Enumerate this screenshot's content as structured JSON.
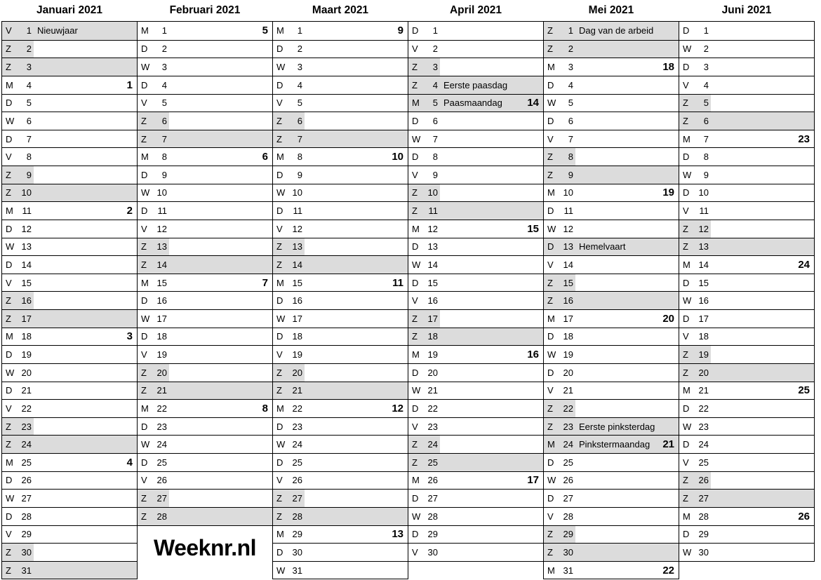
{
  "logo": {
    "text": "Weeknr.nl"
  },
  "calendar": {
    "year": "2021",
    "shade_color": "#dcdcdc",
    "weekday_letters": {
      "monday": "M",
      "tuesday": "D",
      "wednesday": "W",
      "thursday": "D",
      "friday": "V",
      "saturday": "Z",
      "sunday": "Z"
    },
    "months": [
      {
        "title": "Januari 2021",
        "days": [
          {
            "wd": "V",
            "n": 1,
            "holiday": "Nieuwjaar",
            "shade": "full"
          },
          {
            "wd": "Z",
            "n": 2,
            "shade": "sat"
          },
          {
            "wd": "Z",
            "n": 3,
            "shade": "full"
          },
          {
            "wd": "M",
            "n": 4,
            "week": "1"
          },
          {
            "wd": "D",
            "n": 5
          },
          {
            "wd": "W",
            "n": 6
          },
          {
            "wd": "D",
            "n": 7
          },
          {
            "wd": "V",
            "n": 8
          },
          {
            "wd": "Z",
            "n": 9,
            "shade": "sat"
          },
          {
            "wd": "Z",
            "n": 10,
            "shade": "full"
          },
          {
            "wd": "M",
            "n": 11,
            "week": "2"
          },
          {
            "wd": "D",
            "n": 12
          },
          {
            "wd": "W",
            "n": 13
          },
          {
            "wd": "D",
            "n": 14
          },
          {
            "wd": "V",
            "n": 15
          },
          {
            "wd": "Z",
            "n": 16,
            "shade": "sat"
          },
          {
            "wd": "Z",
            "n": 17,
            "shade": "full"
          },
          {
            "wd": "M",
            "n": 18,
            "week": "3"
          },
          {
            "wd": "D",
            "n": 19
          },
          {
            "wd": "W",
            "n": 20
          },
          {
            "wd": "D",
            "n": 21
          },
          {
            "wd": "V",
            "n": 22
          },
          {
            "wd": "Z",
            "n": 23,
            "shade": "sat"
          },
          {
            "wd": "Z",
            "n": 24,
            "shade": "full"
          },
          {
            "wd": "M",
            "n": 25,
            "week": "4"
          },
          {
            "wd": "D",
            "n": 26
          },
          {
            "wd": "W",
            "n": 27
          },
          {
            "wd": "D",
            "n": 28
          },
          {
            "wd": "V",
            "n": 29
          },
          {
            "wd": "Z",
            "n": 30,
            "shade": "sat"
          },
          {
            "wd": "Z",
            "n": 31,
            "shade": "full"
          }
        ]
      },
      {
        "title": "Februari 2021",
        "days": [
          {
            "wd": "M",
            "n": 1,
            "week": "5"
          },
          {
            "wd": "D",
            "n": 2
          },
          {
            "wd": "W",
            "n": 3
          },
          {
            "wd": "D",
            "n": 4
          },
          {
            "wd": "V",
            "n": 5
          },
          {
            "wd": "Z",
            "n": 6,
            "shade": "sat"
          },
          {
            "wd": "Z",
            "n": 7,
            "shade": "full"
          },
          {
            "wd": "M",
            "n": 8,
            "week": "6"
          },
          {
            "wd": "D",
            "n": 9
          },
          {
            "wd": "W",
            "n": 10
          },
          {
            "wd": "D",
            "n": 11
          },
          {
            "wd": "V",
            "n": 12
          },
          {
            "wd": "Z",
            "n": 13,
            "shade": "sat"
          },
          {
            "wd": "Z",
            "n": 14,
            "shade": "full"
          },
          {
            "wd": "M",
            "n": 15,
            "week": "7"
          },
          {
            "wd": "D",
            "n": 16
          },
          {
            "wd": "W",
            "n": 17
          },
          {
            "wd": "D",
            "n": 18
          },
          {
            "wd": "V",
            "n": 19
          },
          {
            "wd": "Z",
            "n": 20,
            "shade": "sat"
          },
          {
            "wd": "Z",
            "n": 21,
            "shade": "full"
          },
          {
            "wd": "M",
            "n": 22,
            "week": "8"
          },
          {
            "wd": "D",
            "n": 23
          },
          {
            "wd": "W",
            "n": 24
          },
          {
            "wd": "D",
            "n": 25
          },
          {
            "wd": "V",
            "n": 26
          },
          {
            "wd": "Z",
            "n": 27,
            "shade": "sat"
          },
          {
            "wd": "Z",
            "n": 28,
            "shade": "full"
          }
        ]
      },
      {
        "title": "Maart 2021",
        "days": [
          {
            "wd": "M",
            "n": 1,
            "week": "9"
          },
          {
            "wd": "D",
            "n": 2
          },
          {
            "wd": "W",
            "n": 3
          },
          {
            "wd": "D",
            "n": 4
          },
          {
            "wd": "V",
            "n": 5
          },
          {
            "wd": "Z",
            "n": 6,
            "shade": "sat"
          },
          {
            "wd": "Z",
            "n": 7,
            "shade": "full"
          },
          {
            "wd": "M",
            "n": 8,
            "week": "10"
          },
          {
            "wd": "D",
            "n": 9
          },
          {
            "wd": "W",
            "n": 10
          },
          {
            "wd": "D",
            "n": 11
          },
          {
            "wd": "V",
            "n": 12
          },
          {
            "wd": "Z",
            "n": 13,
            "shade": "sat"
          },
          {
            "wd": "Z",
            "n": 14,
            "shade": "full"
          },
          {
            "wd": "M",
            "n": 15,
            "week": "11"
          },
          {
            "wd": "D",
            "n": 16
          },
          {
            "wd": "W",
            "n": 17
          },
          {
            "wd": "D",
            "n": 18
          },
          {
            "wd": "V",
            "n": 19
          },
          {
            "wd": "Z",
            "n": 20,
            "shade": "sat"
          },
          {
            "wd": "Z",
            "n": 21,
            "shade": "full"
          },
          {
            "wd": "M",
            "n": 22,
            "week": "12"
          },
          {
            "wd": "D",
            "n": 23
          },
          {
            "wd": "W",
            "n": 24
          },
          {
            "wd": "D",
            "n": 25
          },
          {
            "wd": "V",
            "n": 26
          },
          {
            "wd": "Z",
            "n": 27,
            "shade": "sat"
          },
          {
            "wd": "Z",
            "n": 28,
            "shade": "full"
          },
          {
            "wd": "M",
            "n": 29,
            "week": "13"
          },
          {
            "wd": "D",
            "n": 30
          },
          {
            "wd": "W",
            "n": 31
          }
        ]
      },
      {
        "title": "April 2021",
        "days": [
          {
            "wd": "D",
            "n": 1
          },
          {
            "wd": "V",
            "n": 2
          },
          {
            "wd": "Z",
            "n": 3,
            "shade": "sat"
          },
          {
            "wd": "Z",
            "n": 4,
            "holiday": "Eerste paasdag",
            "shade": "full"
          },
          {
            "wd": "M",
            "n": 5,
            "holiday": "Paasmaandag",
            "shade": "full",
            "week": "14"
          },
          {
            "wd": "D",
            "n": 6
          },
          {
            "wd": "W",
            "n": 7
          },
          {
            "wd": "D",
            "n": 8
          },
          {
            "wd": "V",
            "n": 9
          },
          {
            "wd": "Z",
            "n": 10,
            "shade": "sat"
          },
          {
            "wd": "Z",
            "n": 11,
            "shade": "full"
          },
          {
            "wd": "M",
            "n": 12,
            "week": "15"
          },
          {
            "wd": "D",
            "n": 13
          },
          {
            "wd": "W",
            "n": 14
          },
          {
            "wd": "D",
            "n": 15
          },
          {
            "wd": "V",
            "n": 16
          },
          {
            "wd": "Z",
            "n": 17,
            "shade": "sat"
          },
          {
            "wd": "Z",
            "n": 18,
            "shade": "full"
          },
          {
            "wd": "M",
            "n": 19,
            "week": "16"
          },
          {
            "wd": "D",
            "n": 20
          },
          {
            "wd": "W",
            "n": 21
          },
          {
            "wd": "D",
            "n": 22
          },
          {
            "wd": "V",
            "n": 23
          },
          {
            "wd": "Z",
            "n": 24,
            "shade": "sat"
          },
          {
            "wd": "Z",
            "n": 25,
            "shade": "full"
          },
          {
            "wd": "M",
            "n": 26,
            "week": "17"
          },
          {
            "wd": "D",
            "n": 27
          },
          {
            "wd": "W",
            "n": 28
          },
          {
            "wd": "D",
            "n": 29
          },
          {
            "wd": "V",
            "n": 30
          }
        ]
      },
      {
        "title": "Mei 2021",
        "days": [
          {
            "wd": "Z",
            "n": 1,
            "holiday": "Dag van de arbeid",
            "shade": "full"
          },
          {
            "wd": "Z",
            "n": 2,
            "shade": "full"
          },
          {
            "wd": "M",
            "n": 3,
            "week": "18"
          },
          {
            "wd": "D",
            "n": 4
          },
          {
            "wd": "W",
            "n": 5
          },
          {
            "wd": "D",
            "n": 6
          },
          {
            "wd": "V",
            "n": 7
          },
          {
            "wd": "Z",
            "n": 8,
            "shade": "sat"
          },
          {
            "wd": "Z",
            "n": 9,
            "shade": "full"
          },
          {
            "wd": "M",
            "n": 10,
            "week": "19"
          },
          {
            "wd": "D",
            "n": 11
          },
          {
            "wd": "W",
            "n": 12
          },
          {
            "wd": "D",
            "n": 13,
            "holiday": "Hemelvaart",
            "shade": "full"
          },
          {
            "wd": "V",
            "n": 14
          },
          {
            "wd": "Z",
            "n": 15,
            "shade": "sat"
          },
          {
            "wd": "Z",
            "n": 16,
            "shade": "full"
          },
          {
            "wd": "M",
            "n": 17,
            "week": "20"
          },
          {
            "wd": "D",
            "n": 18
          },
          {
            "wd": "W",
            "n": 19
          },
          {
            "wd": "D",
            "n": 20
          },
          {
            "wd": "V",
            "n": 21
          },
          {
            "wd": "Z",
            "n": 22,
            "shade": "sat"
          },
          {
            "wd": "Z",
            "n": 23,
            "holiday": "Eerste pinksterdag",
            "shade": "full"
          },
          {
            "wd": "M",
            "n": 24,
            "holiday": "Pinkstermaandag",
            "shade": "full",
            "week": "21"
          },
          {
            "wd": "D",
            "n": 25
          },
          {
            "wd": "W",
            "n": 26
          },
          {
            "wd": "D",
            "n": 27
          },
          {
            "wd": "V",
            "n": 28
          },
          {
            "wd": "Z",
            "n": 29,
            "shade": "sat"
          },
          {
            "wd": "Z",
            "n": 30,
            "shade": "full"
          },
          {
            "wd": "M",
            "n": 31,
            "week": "22"
          }
        ]
      },
      {
        "title": "Juni 2021",
        "days": [
          {
            "wd": "D",
            "n": 1
          },
          {
            "wd": "W",
            "n": 2
          },
          {
            "wd": "D",
            "n": 3
          },
          {
            "wd": "V",
            "n": 4
          },
          {
            "wd": "Z",
            "n": 5,
            "shade": "sat"
          },
          {
            "wd": "Z",
            "n": 6,
            "shade": "full"
          },
          {
            "wd": "M",
            "n": 7,
            "week": "23"
          },
          {
            "wd": "D",
            "n": 8
          },
          {
            "wd": "W",
            "n": 9
          },
          {
            "wd": "D",
            "n": 10
          },
          {
            "wd": "V",
            "n": 11
          },
          {
            "wd": "Z",
            "n": 12,
            "shade": "sat"
          },
          {
            "wd": "Z",
            "n": 13,
            "shade": "full"
          },
          {
            "wd": "M",
            "n": 14,
            "week": "24"
          },
          {
            "wd": "D",
            "n": 15
          },
          {
            "wd": "W",
            "n": 16
          },
          {
            "wd": "D",
            "n": 17
          },
          {
            "wd": "V",
            "n": 18
          },
          {
            "wd": "Z",
            "n": 19,
            "shade": "sat"
          },
          {
            "wd": "Z",
            "n": 20,
            "shade": "full"
          },
          {
            "wd": "M",
            "n": 21,
            "week": "25"
          },
          {
            "wd": "D",
            "n": 22
          },
          {
            "wd": "W",
            "n": 23
          },
          {
            "wd": "D",
            "n": 24
          },
          {
            "wd": "V",
            "n": 25
          },
          {
            "wd": "Z",
            "n": 26,
            "shade": "sat"
          },
          {
            "wd": "Z",
            "n": 27,
            "shade": "full"
          },
          {
            "wd": "M",
            "n": 28,
            "week": "26"
          },
          {
            "wd": "D",
            "n": 29
          },
          {
            "wd": "W",
            "n": 30
          }
        ]
      }
    ]
  }
}
